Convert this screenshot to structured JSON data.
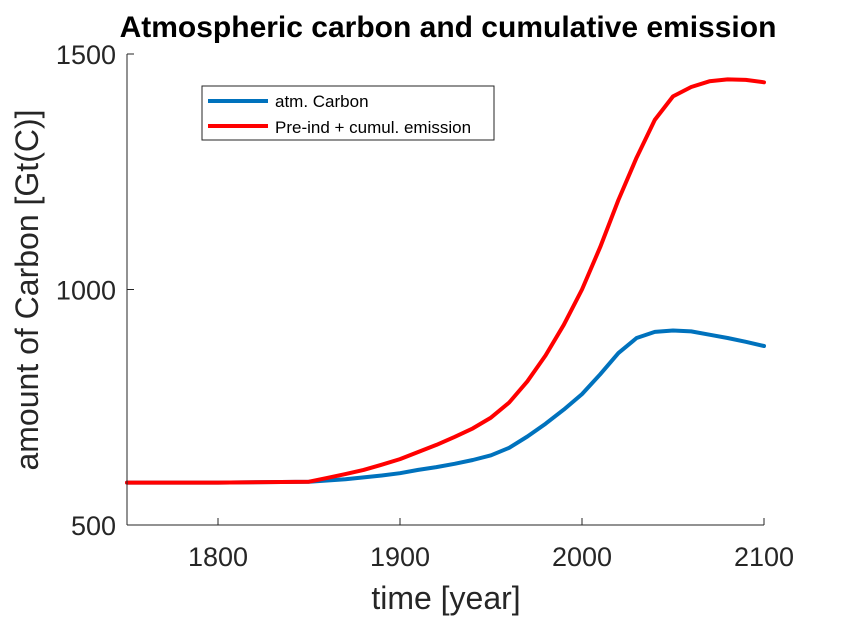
{
  "chart_data": {
    "type": "line",
    "title": "Atmospheric carbon and cumulative emission",
    "xlabel": "time [year]",
    "ylabel": "amount of Carbon [Gt(C)]",
    "xlim": [
      1750,
      2100
    ],
    "ylim": [
      500,
      1500
    ],
    "xticks": [
      1800,
      1900,
      2000,
      2100
    ],
    "yticks": [
      500,
      1000,
      1500
    ],
    "grid": false,
    "legend_position": "top-left",
    "series": [
      {
        "name": "atm. Carbon",
        "color": "#0072BD",
        "x": [
          1750,
          1800,
          1850,
          1870,
          1890,
          1900,
          1910,
          1920,
          1930,
          1940,
          1950,
          1960,
          1970,
          1980,
          1990,
          2000,
          2010,
          2020,
          2030,
          2040,
          2050,
          2060,
          2070,
          2080,
          2090,
          2100
        ],
        "y": [
          590,
          590,
          592,
          597,
          605,
          610,
          617,
          623,
          630,
          638,
          648,
          664,
          688,
          715,
          745,
          778,
          820,
          865,
          897,
          910,
          913,
          911,
          904,
          897,
          889,
          880
        ]
      },
      {
        "name": "Pre-ind + cumul. emission",
        "color": "#FF0000",
        "x": [
          1750,
          1800,
          1850,
          1860,
          1870,
          1880,
          1890,
          1900,
          1910,
          1920,
          1930,
          1940,
          1950,
          1960,
          1970,
          1980,
          1990,
          2000,
          2010,
          2020,
          2030,
          2040,
          2050,
          2060,
          2070,
          2080,
          2090,
          2100
        ],
        "y": [
          590,
          590,
          592,
          600,
          608,
          617,
          628,
          640,
          655,
          670,
          687,
          705,
          728,
          760,
          805,
          860,
          925,
          1000,
          1090,
          1190,
          1280,
          1360,
          1410,
          1430,
          1442,
          1446,
          1445,
          1440
        ]
      }
    ]
  }
}
